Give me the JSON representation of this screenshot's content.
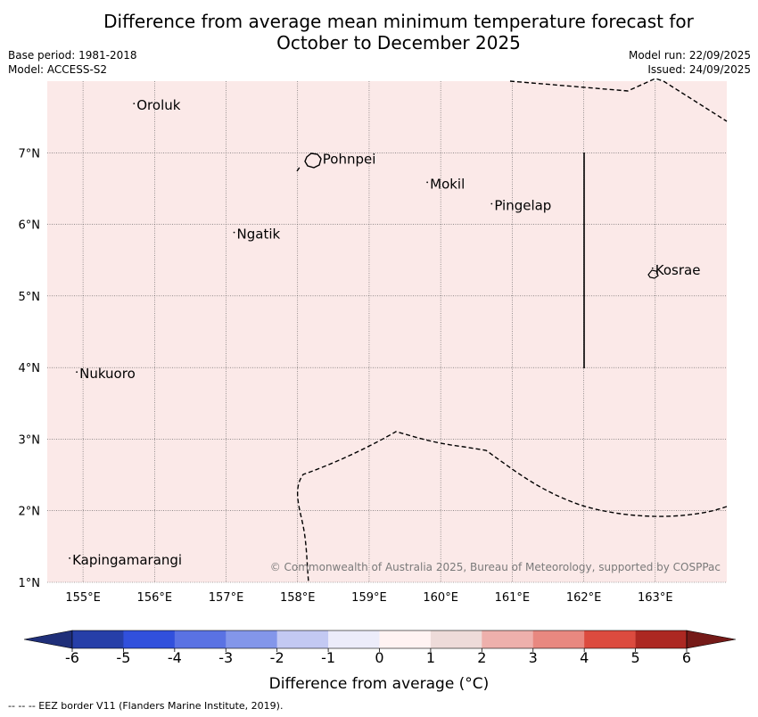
{
  "header": {
    "title_line1": "Difference from average mean minimum temperature forecast for",
    "title_line2": "October to December 2025",
    "base_period": "Base period: 1981-2018",
    "model": "Model: ACCESS-S2",
    "model_run": "Model run: 22/09/2025",
    "issued": "Issued: 24/09/2025"
  },
  "map": {
    "background_color": "#fbe9e8",
    "lon_range": [
      154.5,
      164.0
    ],
    "lat_range": [
      1.0,
      8.0
    ],
    "lon_ticks": [
      "155°E",
      "156°E",
      "157°E",
      "158°E",
      "159°E",
      "160°E",
      "161°E",
      "162°E",
      "163°E"
    ],
    "lat_ticks": [
      "1°N",
      "2°N",
      "3°N",
      "4°N",
      "5°N",
      "6°N",
      "7°N"
    ],
    "places": [
      {
        "name": "Oroluk",
        "lon": 155.75,
        "lat": 7.6
      },
      {
        "name": "Pohnpei",
        "lon": 158.35,
        "lat": 6.85
      },
      {
        "name": "Mokil",
        "lon": 159.85,
        "lat": 6.5
      },
      {
        "name": "Pingelap",
        "lon": 160.75,
        "lat": 6.2
      },
      {
        "name": "Ngatik",
        "lon": 157.15,
        "lat": 5.8
      },
      {
        "name": "Kosrae",
        "lon": 163.0,
        "lat": 5.3
      },
      {
        "name": "Nukuoro",
        "lon": 154.95,
        "lat": 3.85
      },
      {
        "name": "Kapingamarangi",
        "lon": 154.85,
        "lat": 1.25
      }
    ],
    "copyright": "© Commonwealth of Australia 2025, Bureau of Meteorology, supported by COSPPac"
  },
  "colorbar": {
    "ticks": [
      "-6",
      "-5",
      "-4",
      "-3",
      "-2",
      "-1",
      "0",
      "1",
      "2",
      "3",
      "4",
      "5",
      "6"
    ],
    "colors": [
      "#263fa8",
      "#3150dc",
      "#5a72e3",
      "#8396ea",
      "#c3c9f3",
      "#ececfa",
      "#fff3f2",
      "#eedbd9",
      "#eeb0ac",
      "#e88880",
      "#dc4b3f",
      "#ac2822"
    ],
    "low_extend_color": "#1f2f79",
    "high_extend_color": "#751a18",
    "label": "Difference from average (°C)"
  },
  "footnote": "--  --  -- EEZ border V11 (Flanders Marine Institute, 2019)."
}
